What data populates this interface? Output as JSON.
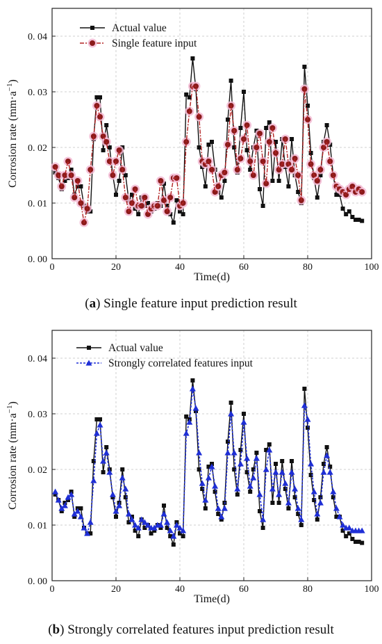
{
  "colors": {
    "actual": "#111111",
    "single": "#b22222",
    "single_fill": "#8b1a1a",
    "single_halo": "#f2b8d2",
    "strong": "#1f2fd6",
    "grid": "#cfcfcf",
    "axis": "#222222"
  },
  "captions": [
    {
      "letter": "a",
      "text": "Single feature input prediction result"
    },
    {
      "letter": "b",
      "text": "Strongly correlated features input prediction result"
    }
  ],
  "chart_data": [
    {
      "type": "line",
      "xlabel": "Time(d)",
      "ylabel": "Corrosion rate (mm·a",
      "ylabel_sup": "−1",
      "ylabel_close": ")",
      "xlim": [
        0,
        100
      ],
      "ylim": [
        0,
        0.045
      ],
      "xticks": [
        "0",
        "20",
        "40",
        "60",
        "80",
        "100"
      ],
      "yticks": [
        "0. 00",
        "0. 01",
        "0. 02",
        "0. 03",
        "0. 04"
      ],
      "grid": true,
      "legend_position": "top-left",
      "series": [
        {
          "name": "Actual value",
          "marker": "square",
          "x": [
            1,
            2,
            3,
            4,
            5,
            6,
            7,
            8,
            9,
            10,
            11,
            12,
            13,
            14,
            15,
            16,
            17,
            18,
            19,
            20,
            21,
            22,
            23,
            24,
            25,
            26,
            27,
            28,
            29,
            30,
            31,
            32,
            33,
            34,
            35,
            36,
            37,
            38,
            39,
            40,
            41,
            42,
            43,
            44,
            45,
            46,
            47,
            48,
            49,
            50,
            51,
            52,
            53,
            54,
            55,
            56,
            57,
            58,
            59,
            60,
            61,
            62,
            63,
            64,
            65,
            66,
            67,
            68,
            69,
            70,
            71,
            72,
            73,
            74,
            75,
            76,
            77,
            78,
            79,
            80,
            81,
            82,
            83,
            84,
            85,
            86,
            87,
            88,
            89,
            90,
            91,
            92,
            93,
            94,
            95,
            96,
            97
          ],
          "y": [
            0.0155,
            0.0145,
            0.0125,
            0.014,
            0.0145,
            0.016,
            0.0115,
            0.013,
            0.013,
            0.0095,
            0.0085,
            0.0085,
            0.0215,
            0.029,
            0.029,
            0.0195,
            0.024,
            0.02,
            0.015,
            0.0115,
            0.014,
            0.02,
            0.015,
            0.0105,
            0.0115,
            0.009,
            0.008,
            0.011,
            0.0095,
            0.01,
            0.0085,
            0.009,
            0.01,
            0.0095,
            0.0135,
            0.0095,
            0.008,
            0.0065,
            0.0105,
            0.0085,
            0.008,
            0.0295,
            0.029,
            0.036,
            0.0305,
            0.02,
            0.0165,
            0.013,
            0.0205,
            0.021,
            0.016,
            0.012,
            0.011,
            0.014,
            0.025,
            0.032,
            0.02,
            0.0155,
            0.0235,
            0.03,
            0.0195,
            0.016,
            0.02,
            0.023,
            0.0125,
            0.0095,
            0.0235,
            0.0245,
            0.014,
            0.021,
            0.014,
            0.0215,
            0.0165,
            0.013,
            0.0215,
            0.015,
            0.012,
            0.01,
            0.0345,
            0.0275,
            0.019,
            0.0145,
            0.011,
            0.015,
            0.021,
            0.024,
            0.0205,
            0.015,
            0.0115,
            0.0115,
            0.009,
            0.008,
            0.0085,
            0.0075,
            0.007,
            0.007,
            0.0068
          ]
        },
        {
          "name": "Single feature input",
          "marker": "circle",
          "x": [
            1,
            2,
            3,
            4,
            5,
            6,
            7,
            8,
            9,
            10,
            11,
            12,
            13,
            14,
            15,
            16,
            17,
            18,
            19,
            20,
            21,
            22,
            23,
            24,
            25,
            26,
            27,
            28,
            29,
            30,
            31,
            32,
            33,
            34,
            35,
            36,
            37,
            38,
            39,
            40,
            41,
            42,
            43,
            44,
            45,
            46,
            47,
            48,
            49,
            50,
            51,
            52,
            53,
            54,
            55,
            56,
            57,
            58,
            59,
            60,
            61,
            62,
            63,
            64,
            65,
            66,
            67,
            68,
            69,
            70,
            71,
            72,
            73,
            74,
            75,
            76,
            77,
            78,
            79,
            80,
            81,
            82,
            83,
            84,
            85,
            86,
            87,
            88,
            89,
            90,
            91,
            92,
            93,
            94,
            95,
            96,
            97
          ],
          "y": [
            0.0165,
            0.015,
            0.013,
            0.015,
            0.0175,
            0.015,
            0.011,
            0.014,
            0.01,
            0.0065,
            0.009,
            0.016,
            0.022,
            0.0275,
            0.0255,
            0.022,
            0.021,
            0.0175,
            0.015,
            0.0175,
            0.0195,
            0.016,
            0.011,
            0.0085,
            0.01,
            0.0125,
            0.0095,
            0.0095,
            0.011,
            0.008,
            0.009,
            0.0095,
            0.0095,
            0.014,
            0.0105,
            0.0085,
            0.011,
            0.0145,
            0.0145,
            0.0095,
            0.01,
            0.021,
            0.0265,
            0.031,
            0.031,
            0.0255,
            0.0175,
            0.017,
            0.0175,
            0.016,
            0.012,
            0.013,
            0.015,
            0.0155,
            0.0205,
            0.0275,
            0.023,
            0.016,
            0.018,
            0.0215,
            0.024,
            0.0175,
            0.015,
            0.02,
            0.0225,
            0.0175,
            0.0135,
            0.021,
            0.0235,
            0.019,
            0.016,
            0.017,
            0.0215,
            0.017,
            0.016,
            0.018,
            0.015,
            0.0105,
            0.0305,
            0.025,
            0.017,
            0.015,
            0.014,
            0.016,
            0.02,
            0.021,
            0.0175,
            0.015,
            0.013,
            0.0125,
            0.012,
            0.0115,
            0.0125,
            0.013,
            0.012,
            0.0125,
            0.012
          ]
        }
      ]
    },
    {
      "type": "line",
      "xlabel": "Time(d)",
      "ylabel": "Corrosion rate (mm·a",
      "ylabel_sup": "−1",
      "ylabel_close": ")",
      "xlim": [
        0,
        100
      ],
      "ylim": [
        0,
        0.045
      ],
      "xticks": [
        "0",
        "20",
        "40",
        "60",
        "80",
        "100"
      ],
      "yticks": [
        "0. 00",
        "0. 01",
        "0. 02",
        "0. 03",
        "0. 04"
      ],
      "grid": true,
      "legend_position": "top",
      "series": [
        {
          "name": "Actual value",
          "marker": "square",
          "x": [
            1,
            2,
            3,
            4,
            5,
            6,
            7,
            8,
            9,
            10,
            11,
            12,
            13,
            14,
            15,
            16,
            17,
            18,
            19,
            20,
            21,
            22,
            23,
            24,
            25,
            26,
            27,
            28,
            29,
            30,
            31,
            32,
            33,
            34,
            35,
            36,
            37,
            38,
            39,
            40,
            41,
            42,
            43,
            44,
            45,
            46,
            47,
            48,
            49,
            50,
            51,
            52,
            53,
            54,
            55,
            56,
            57,
            58,
            59,
            60,
            61,
            62,
            63,
            64,
            65,
            66,
            67,
            68,
            69,
            70,
            71,
            72,
            73,
            74,
            75,
            76,
            77,
            78,
            79,
            80,
            81,
            82,
            83,
            84,
            85,
            86,
            87,
            88,
            89,
            90,
            91,
            92,
            93,
            94,
            95,
            96,
            97
          ],
          "y": [
            0.0155,
            0.0145,
            0.0125,
            0.014,
            0.0145,
            0.016,
            0.0115,
            0.013,
            0.013,
            0.0095,
            0.0085,
            0.0085,
            0.0215,
            0.029,
            0.029,
            0.0195,
            0.024,
            0.02,
            0.015,
            0.0115,
            0.014,
            0.02,
            0.015,
            0.0105,
            0.0115,
            0.009,
            0.008,
            0.011,
            0.0095,
            0.01,
            0.0085,
            0.009,
            0.01,
            0.0095,
            0.0135,
            0.0095,
            0.008,
            0.0065,
            0.0105,
            0.0085,
            0.008,
            0.0295,
            0.029,
            0.036,
            0.0305,
            0.02,
            0.0165,
            0.013,
            0.0205,
            0.021,
            0.016,
            0.012,
            0.011,
            0.014,
            0.025,
            0.032,
            0.02,
            0.0155,
            0.0235,
            0.03,
            0.0195,
            0.016,
            0.02,
            0.023,
            0.0125,
            0.0095,
            0.0235,
            0.0245,
            0.014,
            0.021,
            0.014,
            0.0215,
            0.0165,
            0.013,
            0.0215,
            0.015,
            0.012,
            0.01,
            0.0345,
            0.0275,
            0.019,
            0.0145,
            0.011,
            0.015,
            0.021,
            0.024,
            0.0205,
            0.015,
            0.0115,
            0.0115,
            0.009,
            0.008,
            0.0085,
            0.0075,
            0.007,
            0.007,
            0.0068
          ]
        },
        {
          "name": "Strongly correlated features input",
          "marker": "triangle",
          "x": [
            1,
            2,
            3,
            4,
            5,
            6,
            7,
            8,
            9,
            10,
            11,
            12,
            13,
            14,
            15,
            16,
            17,
            18,
            19,
            20,
            21,
            22,
            23,
            24,
            25,
            26,
            27,
            28,
            29,
            30,
            31,
            32,
            33,
            34,
            35,
            36,
            37,
            38,
            39,
            40,
            41,
            42,
            43,
            44,
            45,
            46,
            47,
            48,
            49,
            50,
            51,
            52,
            53,
            54,
            55,
            56,
            57,
            58,
            59,
            60,
            61,
            62,
            63,
            64,
            65,
            66,
            67,
            68,
            69,
            70,
            71,
            72,
            73,
            74,
            75,
            76,
            77,
            78,
            79,
            80,
            81,
            82,
            83,
            84,
            85,
            86,
            87,
            88,
            89,
            90,
            91,
            92,
            93,
            94,
            95,
            96,
            97
          ],
          "y": [
            0.016,
            0.0145,
            0.013,
            0.0135,
            0.015,
            0.0155,
            0.012,
            0.0125,
            0.0115,
            0.0095,
            0.0085,
            0.0105,
            0.018,
            0.0265,
            0.028,
            0.0215,
            0.023,
            0.0195,
            0.0155,
            0.0125,
            0.0135,
            0.0185,
            0.0165,
            0.012,
            0.011,
            0.01,
            0.0095,
            0.011,
            0.0105,
            0.01,
            0.0095,
            0.0095,
            0.01,
            0.01,
            0.012,
            0.0105,
            0.009,
            0.008,
            0.01,
            0.0095,
            0.009,
            0.0265,
            0.0285,
            0.0345,
            0.031,
            0.023,
            0.0175,
            0.0145,
            0.0185,
            0.0205,
            0.017,
            0.013,
            0.0115,
            0.013,
            0.023,
            0.03,
            0.023,
            0.0165,
            0.021,
            0.0285,
            0.022,
            0.017,
            0.0185,
            0.022,
            0.0155,
            0.011,
            0.02,
            0.0235,
            0.0165,
            0.0195,
            0.0155,
            0.0195,
            0.0175,
            0.014,
            0.0195,
            0.0165,
            0.013,
            0.011,
            0.0315,
            0.029,
            0.021,
            0.016,
            0.012,
            0.014,
            0.0195,
            0.0225,
            0.0195,
            0.016,
            0.013,
            0.0115,
            0.01,
            0.0095,
            0.0095,
            0.009,
            0.009,
            0.009,
            0.009
          ]
        }
      ]
    }
  ]
}
